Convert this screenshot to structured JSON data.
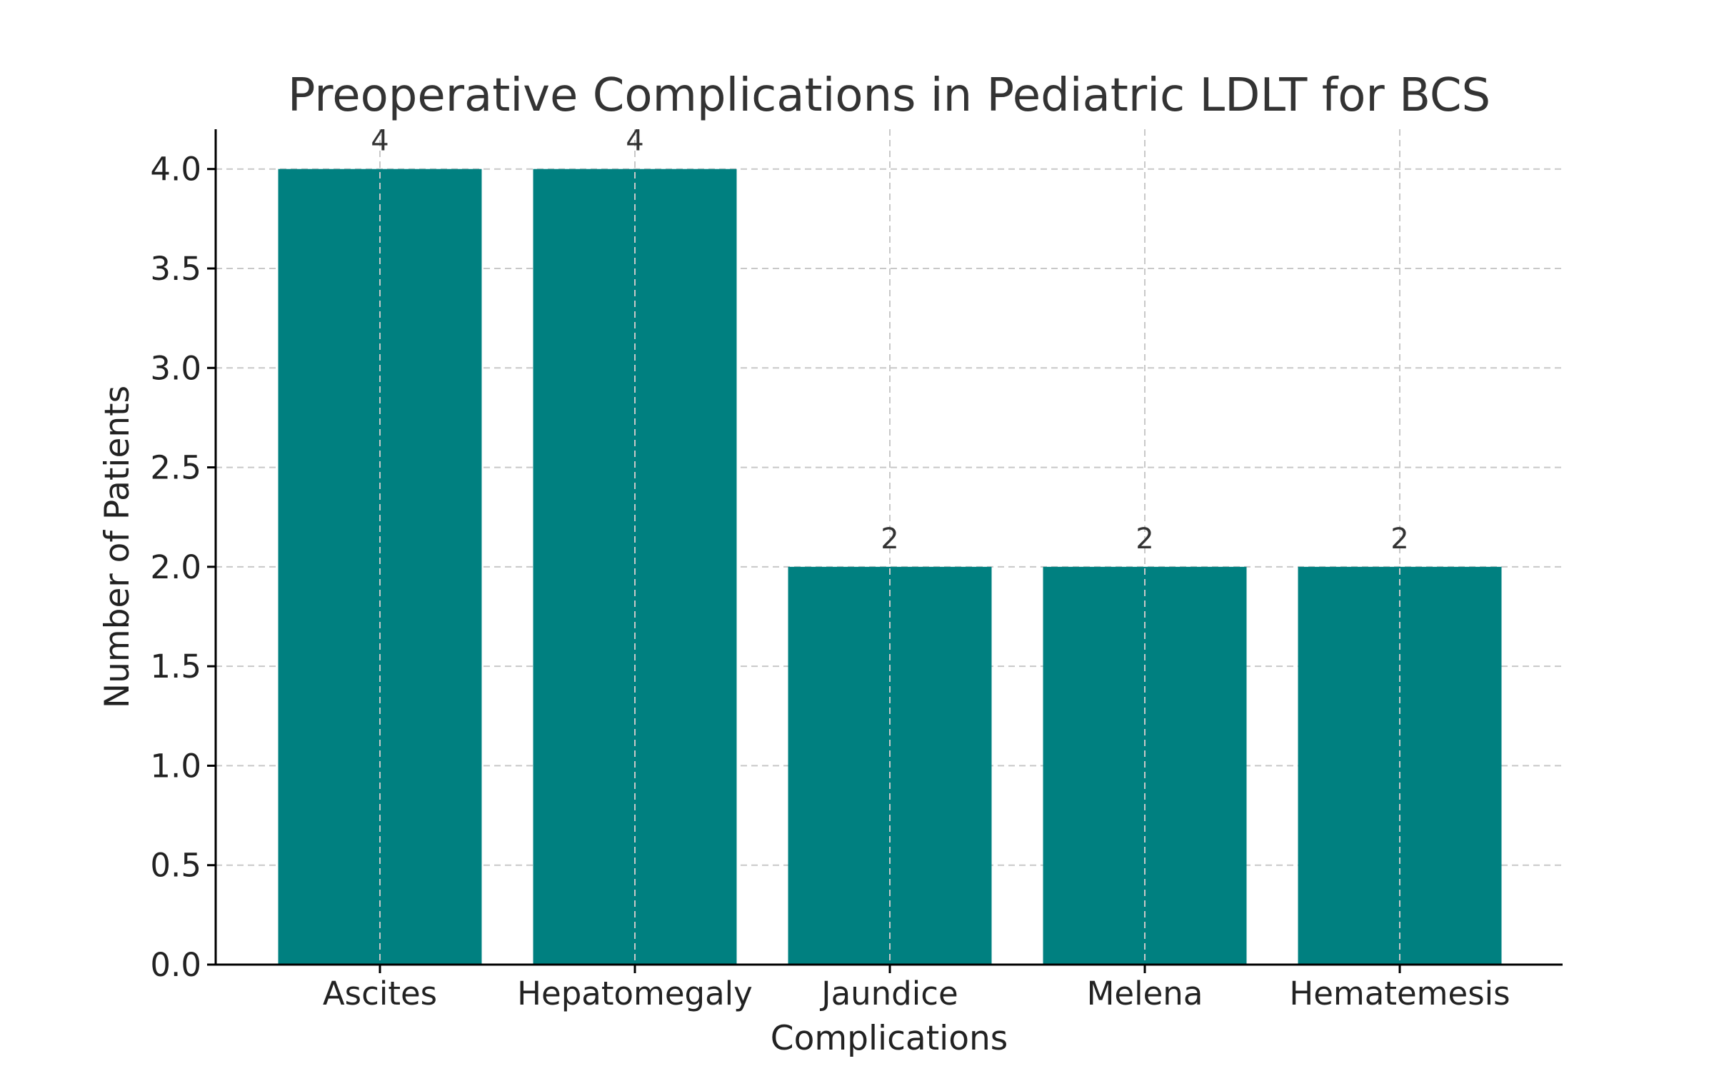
{
  "chart_data": {
    "type": "bar",
    "title": "Preoperative Complications in Pediatric LDLT for BCS",
    "xlabel": "Complications",
    "ylabel": "Number of Patients",
    "categories": [
      "Ascites",
      "Hepatomegaly",
      "Jaundice",
      "Melena",
      "Hematemesis"
    ],
    "values": [
      4,
      4,
      2,
      2,
      2
    ],
    "data_labels": [
      "4",
      "4",
      "2",
      "2",
      "2"
    ],
    "ylim": [
      0,
      4.2
    ],
    "yticks": [
      0.0,
      0.5,
      1.0,
      1.5,
      2.0,
      2.5,
      3.0,
      3.5,
      4.0
    ],
    "ytick_labels": [
      "0.0",
      "0.5",
      "1.0",
      "1.5",
      "2.0",
      "2.5",
      "3.0",
      "3.5",
      "4.0"
    ],
    "grid": true,
    "bar_color": "#008080"
  }
}
